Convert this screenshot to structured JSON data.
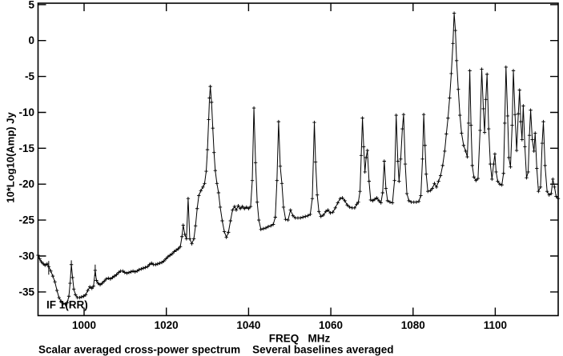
{
  "figure": {
    "background": "#ffffff",
    "foreground": "#000000"
  },
  "chart_data": {
    "type": "line",
    "marker": "plus",
    "line_color": "#000000",
    "grid": false,
    "title": "",
    "xlabel": "FREQ   MHz",
    "ylabel": "10*Log10(Amp) Jy",
    "caption": "Scalar averaged cross-power spectrum    Several baselines averaged",
    "annotation": "IF 1(RR)",
    "xlim": [
      988.8,
      1115.3
    ],
    "ylim": [
      -38.3,
      5.2
    ],
    "xticks": [
      1000,
      1020,
      1040,
      1060,
      1080,
      1100
    ],
    "yticks": [
      5,
      0,
      -5,
      -10,
      -15,
      -20,
      -25,
      -30,
      -35
    ],
    "x_unit": "MHz",
    "y_unit": "Jy (dB)",
    "points": [
      [
        988.8,
        -29.9
      ],
      [
        989.2,
        -30.4
      ],
      [
        989.6,
        -30.8
      ],
      [
        990.1,
        -31.1
      ],
      [
        990.5,
        -31.3
      ],
      [
        991.0,
        -31.1
      ],
      [
        991.4,
        -31.5
      ],
      [
        991.9,
        -32.1
      ],
      [
        992.4,
        -32.8
      ],
      [
        992.9,
        -33.6
      ],
      [
        993.4,
        -34.8
      ],
      [
        993.9,
        -35.8
      ],
      [
        994.4,
        -36.3
      ],
      [
        994.9,
        -36.6
      ],
      [
        995.4,
        -36.7
      ],
      [
        995.9,
        -36.5
      ],
      [
        996.3,
        -35.6
      ],
      [
        996.6,
        -33.8
      ],
      [
        996.9,
        -31.2
      ],
      [
        997.2,
        -33.0
      ],
      [
        997.5,
        -34.6
      ],
      [
        997.9,
        -35.4
      ],
      [
        998.4,
        -35.8
      ],
      [
        998.9,
        -35.8
      ],
      [
        999.4,
        -35.7
      ],
      [
        999.9,
        -35.6
      ],
      [
        1000.4,
        -35.4
      ],
      [
        1000.9,
        -34.8
      ],
      [
        1001.4,
        -34.3
      ],
      [
        1001.9,
        -34.5
      ],
      [
        1002.3,
        -34.2
      ],
      [
        1002.7,
        -32.0
      ],
      [
        1003.0,
        -33.4
      ],
      [
        1003.4,
        -33.8
      ],
      [
        1003.9,
        -34.0
      ],
      [
        1004.4,
        -33.8
      ],
      [
        1004.9,
        -33.5
      ],
      [
        1005.4,
        -33.2
      ],
      [
        1005.9,
        -33.1
      ],
      [
        1006.4,
        -33.2
      ],
      [
        1006.9,
        -33.0
      ],
      [
        1007.4,
        -32.8
      ],
      [
        1007.9,
        -32.6
      ],
      [
        1008.4,
        -32.3
      ],
      [
        1008.9,
        -32.1
      ],
      [
        1009.4,
        -32.1
      ],
      [
        1009.9,
        -32.3
      ],
      [
        1010.4,
        -32.4
      ],
      [
        1010.9,
        -32.3
      ],
      [
        1011.4,
        -32.2
      ],
      [
        1011.9,
        -32.1
      ],
      [
        1012.4,
        -32.2
      ],
      [
        1012.9,
        -32.1
      ],
      [
        1013.4,
        -31.9
      ],
      [
        1013.9,
        -31.8
      ],
      [
        1014.4,
        -31.7
      ],
      [
        1014.9,
        -31.6
      ],
      [
        1015.4,
        -31.5
      ],
      [
        1015.9,
        -31.2
      ],
      [
        1016.4,
        -31.0
      ],
      [
        1016.9,
        -31.2
      ],
      [
        1017.4,
        -31.2
      ],
      [
        1017.9,
        -31.1
      ],
      [
        1018.4,
        -31.0
      ],
      [
        1018.9,
        -30.9
      ],
      [
        1019.4,
        -30.7
      ],
      [
        1019.9,
        -30.4
      ],
      [
        1020.4,
        -30.1
      ],
      [
        1020.9,
        -29.9
      ],
      [
        1021.4,
        -29.7
      ],
      [
        1021.9,
        -29.4
      ],
      [
        1022.4,
        -29.2
      ],
      [
        1022.9,
        -29.0
      ],
      [
        1023.4,
        -28.7
      ],
      [
        1023.8,
        -27.3
      ],
      [
        1024.1,
        -25.7
      ],
      [
        1024.5,
        -27.0
      ],
      [
        1024.9,
        -27.6
      ],
      [
        1025.3,
        -22.0
      ],
      [
        1025.7,
        -27.6
      ],
      [
        1026.2,
        -28.3
      ],
      [
        1026.7,
        -27.6
      ],
      [
        1027.1,
        -25.8
      ],
      [
        1027.5,
        -23.4
      ],
      [
        1027.9,
        -21.6
      ],
      [
        1028.4,
        -20.9
      ],
      [
        1028.9,
        -20.4
      ],
      [
        1029.3,
        -19.9
      ],
      [
        1029.7,
        -18.2
      ],
      [
        1030.0,
        -15.2
      ],
      [
        1030.3,
        -11.0
      ],
      [
        1030.5,
        -8.0
      ],
      [
        1030.7,
        -6.4
      ],
      [
        1031.0,
        -8.6
      ],
      [
        1031.3,
        -12.2
      ],
      [
        1031.6,
        -15.6
      ],
      [
        1031.9,
        -18.1
      ],
      [
        1032.3,
        -19.9
      ],
      [
        1032.7,
        -21.2
      ],
      [
        1033.1,
        -23.2
      ],
      [
        1033.6,
        -25.1
      ],
      [
        1034.1,
        -26.6
      ],
      [
        1034.6,
        -27.4
      ],
      [
        1035.1,
        -26.7
      ],
      [
        1035.6,
        -25.1
      ],
      [
        1036.1,
        -23.6
      ],
      [
        1036.6,
        -23.1
      ],
      [
        1037.0,
        -23.6
      ],
      [
        1037.5,
        -23.0
      ],
      [
        1038.0,
        -23.4
      ],
      [
        1038.5,
        -23.1
      ],
      [
        1039.0,
        -23.4
      ],
      [
        1039.5,
        -23.2
      ],
      [
        1040.0,
        -23.4
      ],
      [
        1040.5,
        -23.1
      ],
      [
        1040.9,
        -19.5
      ],
      [
        1041.3,
        -9.4
      ],
      [
        1041.7,
        -17.0
      ],
      [
        1042.1,
        -22.5
      ],
      [
        1042.5,
        -25.0
      ],
      [
        1043.0,
        -26.3
      ],
      [
        1043.6,
        -26.2
      ],
      [
        1044.2,
        -26.1
      ],
      [
        1044.8,
        -25.9
      ],
      [
        1045.4,
        -25.8
      ],
      [
        1046.0,
        -25.6
      ],
      [
        1046.5,
        -24.6
      ],
      [
        1046.9,
        -19.5
      ],
      [
        1047.3,
        -11.3
      ],
      [
        1047.7,
        -17.5
      ],
      [
        1048.1,
        -19.9
      ],
      [
        1048.5,
        -23.2
      ],
      [
        1049.0,
        -24.9
      ],
      [
        1049.6,
        -25.0
      ],
      [
        1050.2,
        -23.6
      ],
      [
        1050.8,
        -24.4
      ],
      [
        1051.4,
        -24.7
      ],
      [
        1052.0,
        -24.7
      ],
      [
        1052.6,
        -24.7
      ],
      [
        1053.2,
        -24.6
      ],
      [
        1053.8,
        -24.5
      ],
      [
        1054.4,
        -24.4
      ],
      [
        1055.0,
        -24.2
      ],
      [
        1055.5,
        -22.0
      ],
      [
        1056.0,
        -11.4
      ],
      [
        1056.3,
        -16.9
      ],
      [
        1056.7,
        -21.5
      ],
      [
        1057.1,
        -23.8
      ],
      [
        1057.6,
        -24.5
      ],
      [
        1058.2,
        -24.3
      ],
      [
        1058.8,
        -23.8
      ],
      [
        1059.3,
        -23.6
      ],
      [
        1059.9,
        -24.0
      ],
      [
        1060.5,
        -23.9
      ],
      [
        1061.1,
        -23.3
      ],
      [
        1061.7,
        -22.6
      ],
      [
        1062.3,
        -22.0
      ],
      [
        1062.8,
        -21.9
      ],
      [
        1063.4,
        -22.3
      ],
      [
        1064.0,
        -22.9
      ],
      [
        1064.6,
        -23.2
      ],
      [
        1065.2,
        -23.3
      ],
      [
        1065.8,
        -23.3
      ],
      [
        1066.3,
        -22.8
      ],
      [
        1066.7,
        -22.5
      ],
      [
        1067.1,
        -21.0
      ],
      [
        1067.4,
        -16.0
      ],
      [
        1067.7,
        -10.8
      ],
      [
        1068.0,
        -14.8
      ],
      [
        1068.3,
        -18.3
      ],
      [
        1068.6,
        -16.3
      ],
      [
        1068.9,
        -15.3
      ],
      [
        1069.3,
        -19.6
      ],
      [
        1069.7,
        -22.2
      ],
      [
        1070.2,
        -22.3
      ],
      [
        1070.7,
        -22.1
      ],
      [
        1071.2,
        -21.9
      ],
      [
        1071.7,
        -22.3
      ],
      [
        1072.2,
        -22.6
      ],
      [
        1072.6,
        -21.2
      ],
      [
        1073.0,
        -16.8
      ],
      [
        1073.4,
        -20.6
      ],
      [
        1073.8,
        -22.3
      ],
      [
        1074.4,
        -22.5
      ],
      [
        1075.0,
        -22.6
      ],
      [
        1075.5,
        -19.5
      ],
      [
        1075.9,
        -10.4
      ],
      [
        1076.3,
        -16.8
      ],
      [
        1076.6,
        -19.6
      ],
      [
        1077.0,
        -16.5
      ],
      [
        1077.4,
        -12.3
      ],
      [
        1077.7,
        -10.3
      ],
      [
        1078.1,
        -17.2
      ],
      [
        1078.5,
        -21.3
      ],
      [
        1079.0,
        -22.3
      ],
      [
        1079.6,
        -22.5
      ],
      [
        1080.2,
        -22.5
      ],
      [
        1080.8,
        -22.5
      ],
      [
        1081.4,
        -22.4
      ],
      [
        1081.9,
        -21.6
      ],
      [
        1082.3,
        -16.5
      ],
      [
        1082.6,
        -10.3
      ],
      [
        1082.9,
        -14.6
      ],
      [
        1083.2,
        -18.6
      ],
      [
        1083.6,
        -21.0
      ],
      [
        1084.2,
        -20.9
      ],
      [
        1084.7,
        -20.6
      ],
      [
        1085.2,
        -19.9
      ],
      [
        1085.7,
        -20.4
      ],
      [
        1086.2,
        -19.6
      ],
      [
        1086.7,
        -18.8
      ],
      [
        1087.2,
        -17.4
      ],
      [
        1087.7,
        -15.4
      ],
      [
        1088.1,
        -13.0
      ],
      [
        1088.5,
        -10.8
      ],
      [
        1088.9,
        -8.0
      ],
      [
        1089.3,
        -4.6
      ],
      [
        1089.7,
        -0.4
      ],
      [
        1090.0,
        3.8
      ],
      [
        1090.3,
        1.4
      ],
      [
        1090.6,
        -2.8
      ],
      [
        1091.0,
        -6.8
      ],
      [
        1091.4,
        -10.4
      ],
      [
        1091.8,
        -12.9
      ],
      [
        1092.3,
        -14.6
      ],
      [
        1092.8,
        -15.4
      ],
      [
        1093.2,
        -16.2
      ],
      [
        1093.5,
        -11.5
      ],
      [
        1093.8,
        -4.2
      ],
      [
        1094.1,
        -11.8
      ],
      [
        1094.4,
        -17.4
      ],
      [
        1094.8,
        -19.0
      ],
      [
        1095.3,
        -19.5
      ],
      [
        1095.8,
        -19.2
      ],
      [
        1096.3,
        -12.5
      ],
      [
        1096.7,
        -4.0
      ],
      [
        1097.1,
        -9.5
      ],
      [
        1097.4,
        -12.8
      ],
      [
        1097.7,
        -8.2
      ],
      [
        1098.0,
        -4.7
      ],
      [
        1098.4,
        -12.3
      ],
      [
        1098.8,
        -17.2
      ],
      [
        1099.2,
        -19.3
      ],
      [
        1099.6,
        -17.2
      ],
      [
        1099.9,
        -15.8
      ],
      [
        1100.2,
        -18.3
      ],
      [
        1100.6,
        -19.6
      ],
      [
        1101.1,
        -20.0
      ],
      [
        1101.6,
        -20.1
      ],
      [
        1102.0,
        -18.5
      ],
      [
        1102.3,
        -11.5
      ],
      [
        1102.6,
        -3.7
      ],
      [
        1103.0,
        -10.5
      ],
      [
        1103.3,
        -16.3
      ],
      [
        1103.7,
        -17.6
      ],
      [
        1104.1,
        -11.8
      ],
      [
        1104.4,
        -4.2
      ],
      [
        1104.8,
        -10.3
      ],
      [
        1105.2,
        -15.3
      ],
      [
        1105.6,
        -10.2
      ],
      [
        1105.9,
        -6.9
      ],
      [
        1106.2,
        -11.3
      ],
      [
        1106.5,
        -13.8
      ],
      [
        1106.8,
        -9.1
      ],
      [
        1107.2,
        -14.8
      ],
      [
        1107.6,
        -19.1
      ],
      [
        1108.0,
        -18.3
      ],
      [
        1108.3,
        -13.2
      ],
      [
        1108.6,
        -9.7
      ],
      [
        1109.0,
        -13.8
      ],
      [
        1109.4,
        -15.4
      ],
      [
        1109.7,
        -12.9
      ],
      [
        1110.1,
        -17.8
      ],
      [
        1110.5,
        -21.0
      ],
      [
        1111.0,
        -20.4
      ],
      [
        1111.4,
        -14.3
      ],
      [
        1111.7,
        -11.3
      ],
      [
        1112.1,
        -17.4
      ],
      [
        1112.6,
        -21.0
      ],
      [
        1113.1,
        -21.5
      ],
      [
        1113.6,
        -21.3
      ],
      [
        1114.0,
        -19.3
      ],
      [
        1114.4,
        -20.4
      ],
      [
        1114.8,
        -21.7
      ],
      [
        1115.3,
        -22.0
      ]
    ],
    "errorbars": [
      [
        988.8,
        -28.6,
        -31.2
      ],
      [
        991.4,
        -30.7,
        -32.6
      ],
      [
        996.9,
        -30.6,
        -31.9
      ],
      [
        1002.7,
        -31.2,
        -32.8
      ]
    ]
  }
}
